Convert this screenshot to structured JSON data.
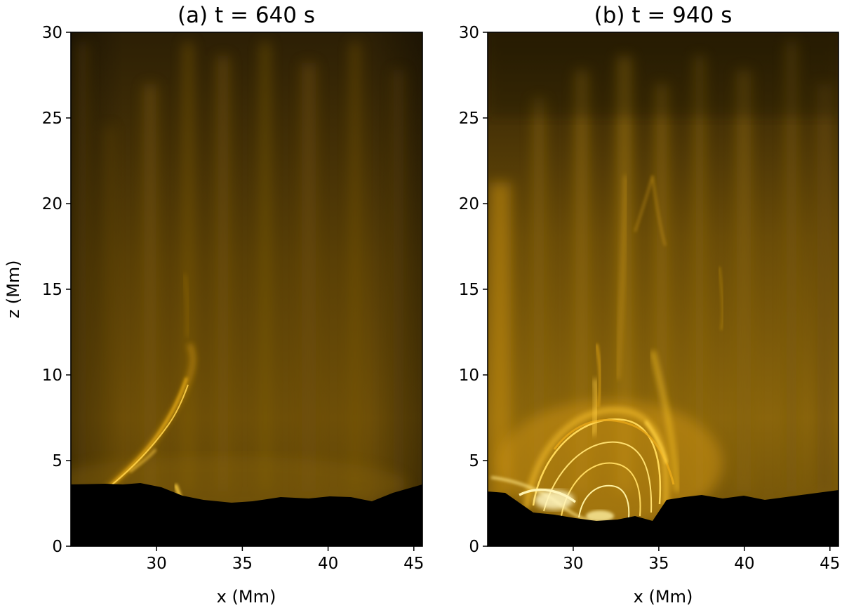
{
  "chart_data": [
    {
      "type": "heatmap",
      "title": "(a) t = 640 s",
      "xlabel": "x (Mm)",
      "ylabel": "z (Mm)",
      "xlim": [
        25,
        45.5
      ],
      "ylim": [
        0,
        30
      ],
      "xticks": [
        "30",
        "35",
        "40",
        "45"
      ],
      "yticks": [
        "0",
        "5",
        "10",
        "15",
        "20",
        "25",
        "30"
      ],
      "colormap": [
        "#000000",
        "#6b4a00",
        "#f2b90a",
        "#fff0a0"
      ],
      "surface_height_Mm": 3.3,
      "features": [
        {
          "kind": "jet-strand",
          "x": [
            26.2,
            28.0,
            30.5,
            31.8
          ],
          "z": [
            2.6,
            4.6,
            7.5,
            10.2
          ]
        },
        {
          "kind": "bright-knot",
          "x": [
            31.2
          ],
          "z": [
            2.2
          ]
        }
      ]
    },
    {
      "type": "heatmap",
      "title": "(b) t = 940 s",
      "xlabel": "x (Mm)",
      "ylabel": "",
      "xlim": [
        25,
        45.5
      ],
      "ylim": [
        0,
        30
      ],
      "xticks": [
        "30",
        "35",
        "40",
        "45"
      ],
      "yticks": [
        "0",
        "5",
        "10",
        "15",
        "20",
        "25",
        "30"
      ],
      "colormap": [
        "#000000",
        "#6b4a00",
        "#f2b90a",
        "#fff0a0"
      ],
      "surface_height_Mm": 3.2,
      "features": [
        {
          "kind": "loop-arcade",
          "x_range": [
            27.0,
            37.0
          ],
          "z_top": 8.0
        },
        {
          "kind": "jet-spire",
          "x": [
            31.5,
            32.0
          ],
          "z": [
            4.0,
            12.0
          ]
        }
      ]
    }
  ]
}
